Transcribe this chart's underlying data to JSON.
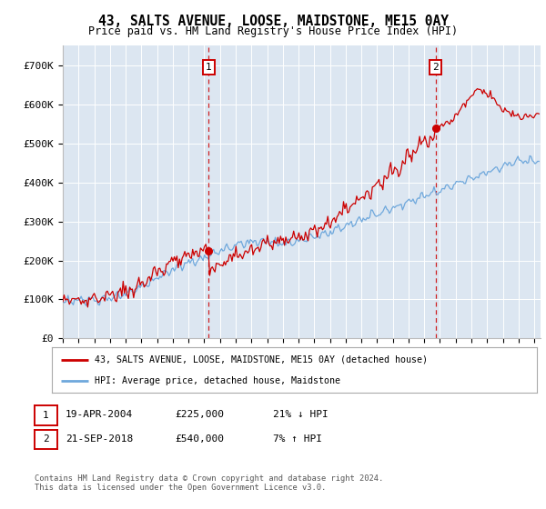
{
  "title": "43, SALTS AVENUE, LOOSE, MAIDSTONE, ME15 0AY",
  "subtitle": "Price paid vs. HM Land Registry's House Price Index (HPI)",
  "ylim": [
    0,
    750000
  ],
  "yticks": [
    0,
    100000,
    200000,
    300000,
    400000,
    500000,
    600000,
    700000
  ],
  "ytick_labels": [
    "£0",
    "£100K",
    "£200K",
    "£300K",
    "£400K",
    "£500K",
    "£600K",
    "£700K"
  ],
  "plot_bg_color": "#dce6f1",
  "grid_color": "#ffffff",
  "hpi_line_color": "#6fa8dc",
  "price_line_color": "#cc0000",
  "sale1_x": 2004.29,
  "sale1_price": 225000,
  "sale2_x": 2018.72,
  "sale2_price": 540000,
  "legend_property": "43, SALTS AVENUE, LOOSE, MAIDSTONE, ME15 0AY (detached house)",
  "legend_hpi": "HPI: Average price, detached house, Maidstone",
  "table_row1": [
    "1",
    "19-APR-2004",
    "£225,000",
    "21% ↓ HPI"
  ],
  "table_row2": [
    "2",
    "21-SEP-2018",
    "£540,000",
    "7% ↑ HPI"
  ],
  "footnote": "Contains HM Land Registry data © Crown copyright and database right 2024.\nThis data is licensed under the Open Government Licence v3.0."
}
